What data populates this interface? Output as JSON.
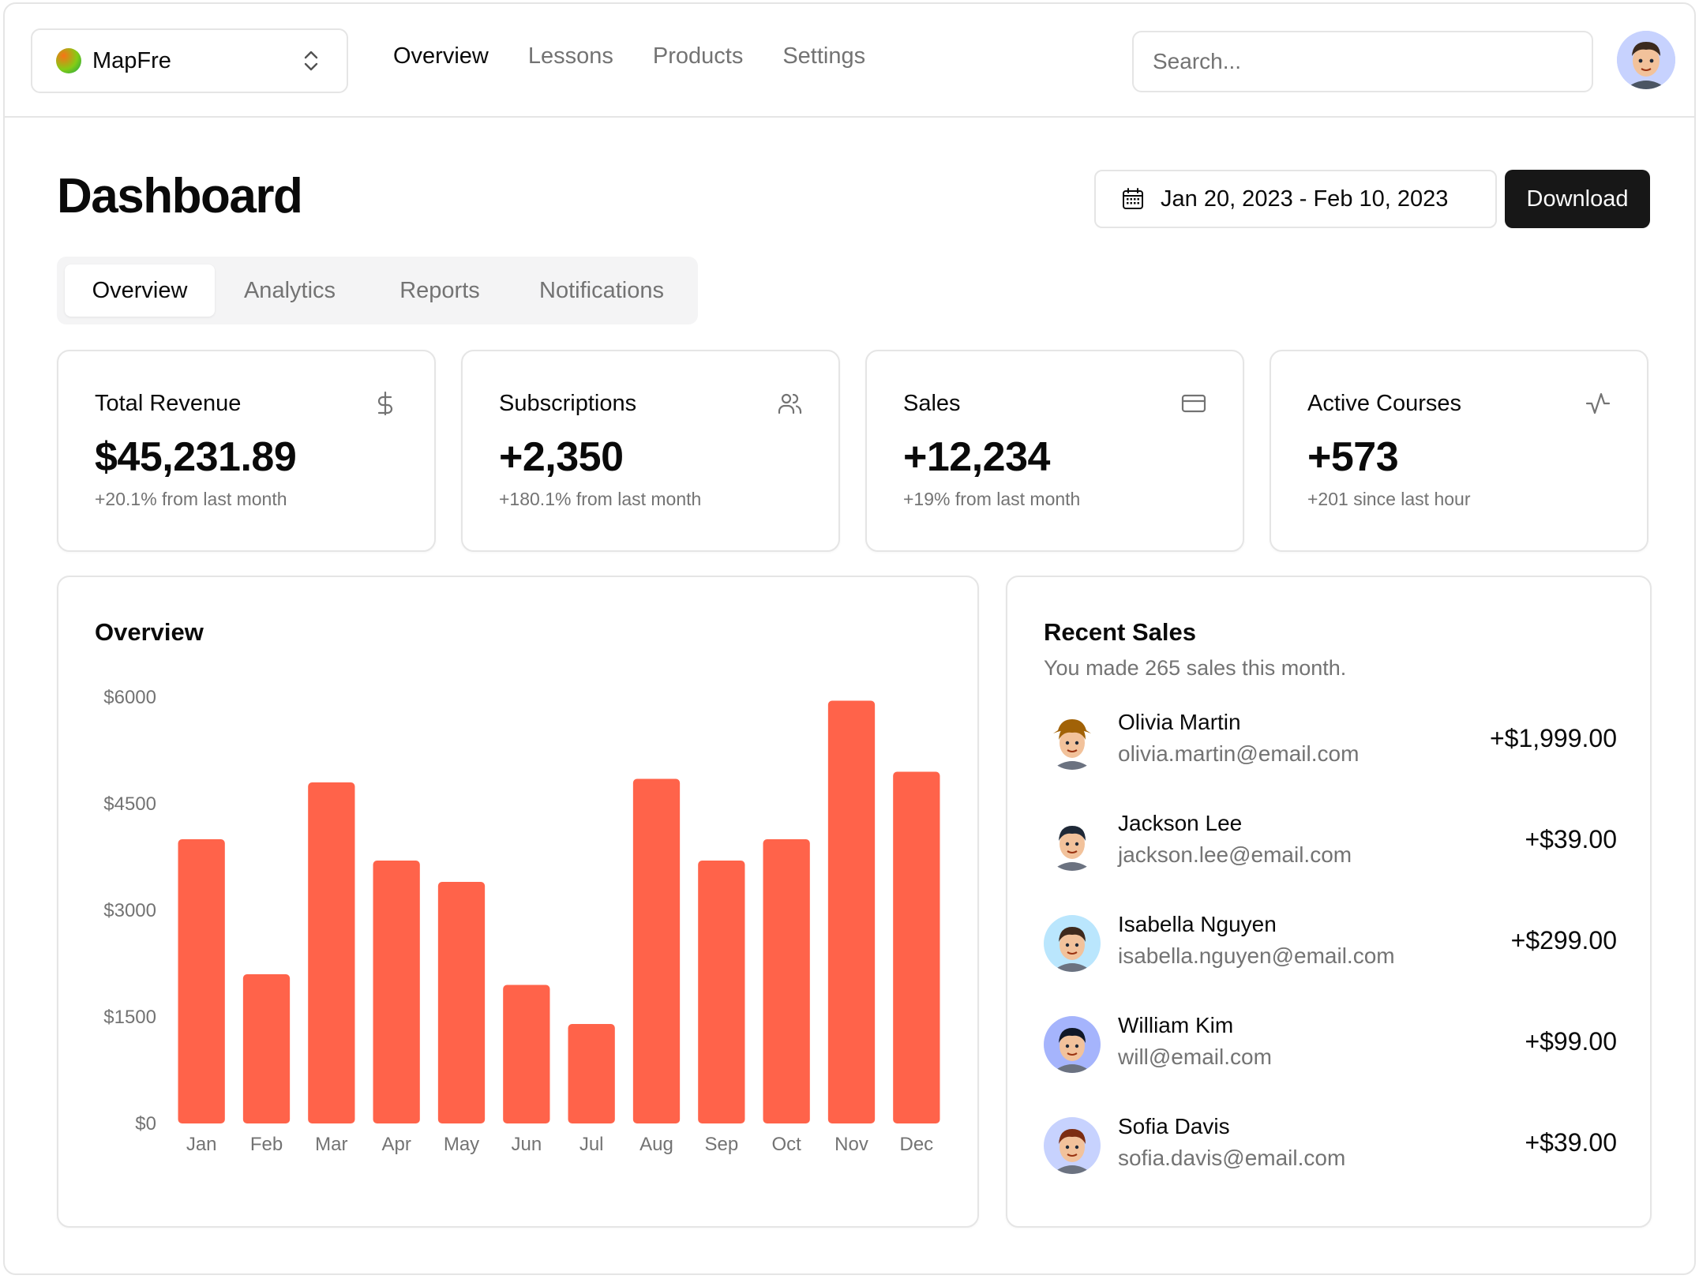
{
  "topbar": {
    "team_name": "MapFre",
    "nav": [
      "Overview",
      "Lessons",
      "Products",
      "Settings"
    ],
    "search_placeholder": "Search..."
  },
  "header": {
    "title": "Dashboard",
    "date_range": "Jan 20, 2023 - Feb 10, 2023",
    "download_label": "Download"
  },
  "tabs": [
    "Overview",
    "Analytics",
    "Reports",
    "Notifications"
  ],
  "stats": [
    {
      "label": "Total Revenue",
      "value": "$45,231.89",
      "sub": "+20.1% from last month",
      "icon": "dollar-icon"
    },
    {
      "label": "Subscriptions",
      "value": "+2,350",
      "sub": "+180.1% from last month",
      "icon": "users-icon"
    },
    {
      "label": "Sales",
      "value": "+12,234",
      "sub": "+19% from last month",
      "icon": "credit-card-icon"
    },
    {
      "label": "Active Courses",
      "value": "+573",
      "sub": "+201 since last hour",
      "icon": "activity-icon"
    }
  ],
  "overview": {
    "title": "Overview"
  },
  "chart_data": {
    "type": "bar",
    "categories": [
      "Jan",
      "Feb",
      "Mar",
      "Apr",
      "May",
      "Jun",
      "Jul",
      "Aug",
      "Sep",
      "Oct",
      "Nov",
      "Dec"
    ],
    "values": [
      4000,
      2100,
      4800,
      3700,
      3400,
      1950,
      1400,
      4850,
      3700,
      4000,
      5950,
      4950
    ],
    "yticks": [
      "$0",
      "$1500",
      "$3000",
      "$4500",
      "$6000"
    ],
    "ylim": [
      0,
      6000
    ],
    "color": "#ff634a",
    "grid": false
  },
  "recent_sales": {
    "title": "Recent Sales",
    "subtitle": "You made 265 sales this month.",
    "items": [
      {
        "name": "Olivia Martin",
        "email": "olivia.martin@email.com",
        "amount": "+$1,999.00",
        "bg": "#ffffff",
        "hair": "#a16207",
        "hat": true
      },
      {
        "name": "Jackson Lee",
        "email": "jackson.lee@email.com",
        "amount": "+$39.00",
        "bg": "#ffffff",
        "hair": "#1f2937",
        "hat": false
      },
      {
        "name": "Isabella Nguyen",
        "email": "isabella.nguyen@email.com",
        "amount": "+$299.00",
        "bg": "#bae6fd",
        "hair": "#3f2a1d",
        "hat": false
      },
      {
        "name": "William Kim",
        "email": "will@email.com",
        "amount": "+$99.00",
        "bg": "#a5b4fc",
        "hair": "#111827",
        "hat": false
      },
      {
        "name": "Sofia Davis",
        "email": "sofia.davis@email.com",
        "amount": "+$39.00",
        "bg": "#c7d2fe",
        "hair": "#7c2d12",
        "hat": false
      }
    ]
  }
}
